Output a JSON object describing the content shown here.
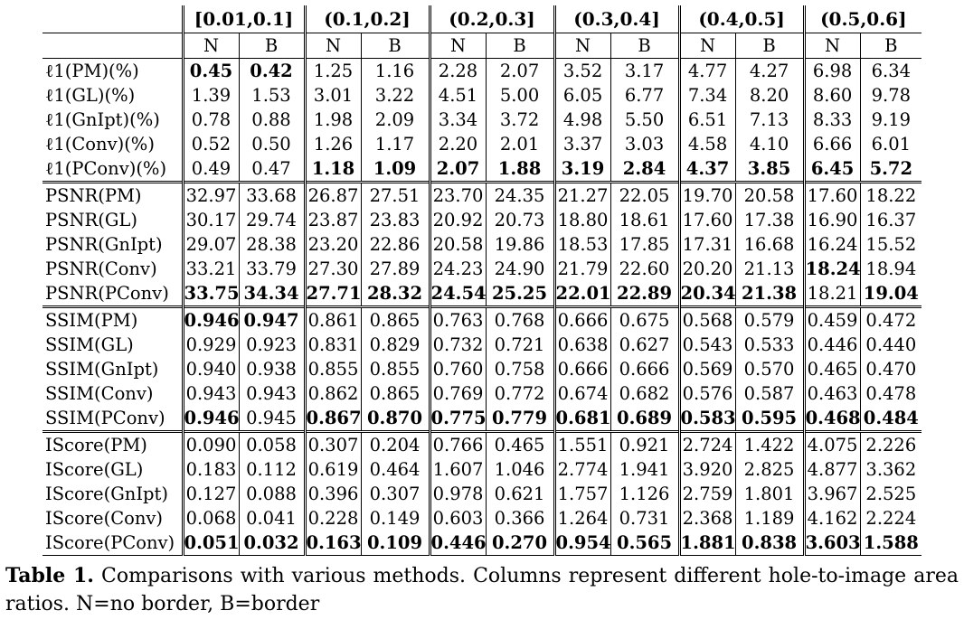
{
  "table": {
    "ranges": [
      "[0.01,0.1]",
      "(0.1,0.2]",
      "(0.2,0.3]",
      "(0.3,0.4]",
      "(0.4,0.5]",
      "(0.5,0.6]"
    ],
    "subheaders": [
      "N",
      "B"
    ],
    "sections": [
      {
        "rows": [
          {
            "label": "ℓ1(PM)(%)",
            "values": [
              "0.45",
              "0.42",
              "1.25",
              "1.16",
              "2.28",
              "2.07",
              "3.52",
              "3.17",
              "4.77",
              "4.27",
              "6.98",
              "6.34"
            ],
            "bold": [
              0,
              1
            ]
          },
          {
            "label": "ℓ1(GL)(%)",
            "values": [
              "1.39",
              "1.53",
              "3.01",
              "3.22",
              "4.51",
              "5.00",
              "6.05",
              "6.77",
              "7.34",
              "8.20",
              "8.60",
              "9.78"
            ],
            "bold": []
          },
          {
            "label": "ℓ1(GnIpt)(%)",
            "values": [
              "0.78",
              "0.88",
              "1.98",
              "2.09",
              "3.34",
              "3.72",
              "4.98",
              "5.50",
              "6.51",
              "7.13",
              "8.33",
              "9.19"
            ],
            "bold": []
          },
          {
            "label": "ℓ1(Conv)(%)",
            "values": [
              "0.52",
              "0.50",
              "1.26",
              "1.17",
              "2.20",
              "2.01",
              "3.37",
              "3.03",
              "4.58",
              "4.10",
              "6.66",
              "6.01"
            ],
            "bold": []
          },
          {
            "label": "ℓ1(PConv)(%)",
            "values": [
              "0.49",
              "0.47",
              "1.18",
              "1.09",
              "2.07",
              "1.88",
              "3.19",
              "2.84",
              "4.37",
              "3.85",
              "6.45",
              "5.72"
            ],
            "bold": [
              2,
              3,
              4,
              5,
              6,
              7,
              8,
              9,
              10,
              11
            ]
          }
        ]
      },
      {
        "rows": [
          {
            "label": "PSNR(PM)",
            "values": [
              "32.97",
              "33.68",
              "26.87",
              "27.51",
              "23.70",
              "24.35",
              "21.27",
              "22.05",
              "19.70",
              "20.58",
              "17.60",
              "18.22"
            ],
            "bold": []
          },
          {
            "label": "PSNR(GL)",
            "values": [
              "30.17",
              "29.74",
              "23.87",
              "23.83",
              "20.92",
              "20.73",
              "18.80",
              "18.61",
              "17.60",
              "17.38",
              "16.90",
              "16.37"
            ],
            "bold": []
          },
          {
            "label": "PSNR(GnIpt)",
            "values": [
              "29.07",
              "28.38",
              "23.20",
              "22.86",
              "20.58",
              "19.86",
              "18.53",
              "17.85",
              "17.31",
              "16.68",
              "16.24",
              "15.52"
            ],
            "bold": []
          },
          {
            "label": "PSNR(Conv)",
            "values": [
              "33.21",
              "33.79",
              "27.30",
              "27.89",
              "24.23",
              "24.90",
              "21.79",
              "22.60",
              "20.20",
              "21.13",
              "18.24",
              "18.94"
            ],
            "bold": [
              10
            ]
          },
          {
            "label": "PSNR(PConv)",
            "values": [
              "33.75",
              "34.34",
              "27.71",
              "28.32",
              "24.54",
              "25.25",
              "22.01",
              "22.89",
              "20.34",
              "21.38",
              "18.21",
              "19.04"
            ],
            "bold": [
              0,
              1,
              2,
              3,
              4,
              5,
              6,
              7,
              8,
              9,
              11
            ]
          }
        ]
      },
      {
        "rows": [
          {
            "label": "SSIM(PM)",
            "values": [
              "0.946",
              "0.947",
              "0.861",
              "0.865",
              "0.763",
              "0.768",
              "0.666",
              "0.675",
              "0.568",
              "0.579",
              "0.459",
              "0.472"
            ],
            "bold": [
              0,
              1
            ]
          },
          {
            "label": "SSIM(GL)",
            "values": [
              "0.929",
              "0.923",
              "0.831",
              "0.829",
              "0.732",
              "0.721",
              "0.638",
              "0.627",
              "0.543",
              "0.533",
              "0.446",
              "0.440"
            ],
            "bold": []
          },
          {
            "label": "SSIM(GnIpt)",
            "values": [
              "0.940",
              "0.938",
              "0.855",
              "0.855",
              "0.760",
              "0.758",
              "0.666",
              "0.666",
              "0.569",
              "0.570",
              "0.465",
              "0.470"
            ],
            "bold": []
          },
          {
            "label": "SSIM(Conv)",
            "values": [
              "0.943",
              "0.943",
              "0.862",
              "0.865",
              "0.769",
              "0.772",
              "0.674",
              "0.682",
              "0.576",
              "0.587",
              "0.463",
              "0.478"
            ],
            "bold": []
          },
          {
            "label": "SSIM(PConv)",
            "values": [
              "0.946",
              "0.945",
              "0.867",
              "0.870",
              "0.775",
              "0.779",
              "0.681",
              "0.689",
              "0.583",
              "0.595",
              "0.468",
              "0.484"
            ],
            "bold": [
              0,
              2,
              3,
              4,
              5,
              6,
              7,
              8,
              9,
              10,
              11
            ]
          }
        ]
      },
      {
        "rows": [
          {
            "label": "IScore(PM)",
            "values": [
              "0.090",
              "0.058",
              "0.307",
              "0.204",
              "0.766",
              "0.465",
              "1.551",
              "0.921",
              "2.724",
              "1.422",
              "4.075",
              "2.226"
            ],
            "bold": []
          },
          {
            "label": "IScore(GL)",
            "values": [
              "0.183",
              "0.112",
              "0.619",
              "0.464",
              "1.607",
              "1.046",
              "2.774",
              "1.941",
              "3.920",
              "2.825",
              "4.877",
              "3.362"
            ],
            "bold": []
          },
          {
            "label": "IScore(GnIpt)",
            "values": [
              "0.127",
              "0.088",
              "0.396",
              "0.307",
              "0.978",
              "0.621",
              "1.757",
              "1.126",
              "2.759",
              "1.801",
              "3.967",
              "2.525"
            ],
            "bold": []
          },
          {
            "label": "IScore(Conv)",
            "values": [
              "0.068",
              "0.041",
              "0.228",
              "0.149",
              "0.603",
              "0.366",
              "1.264",
              "0.731",
              "2.368",
              "1.189",
              "4.162",
              "2.224"
            ],
            "bold": []
          },
          {
            "label": "IScore(PConv)",
            "values": [
              "0.051",
              "0.032",
              "0.163",
              "0.109",
              "0.446",
              "0.270",
              "0.954",
              "0.565",
              "1.881",
              "0.838",
              "3.603",
              "1.588"
            ],
            "bold": [
              0,
              1,
              2,
              3,
              4,
              5,
              6,
              7,
              8,
              9,
              10,
              11
            ]
          }
        ]
      }
    ]
  },
  "caption": {
    "label": "Table 1.",
    "text": "Comparisons with various methods. Columns represent different hole-to-image area ratios. N=no border, B=border"
  }
}
